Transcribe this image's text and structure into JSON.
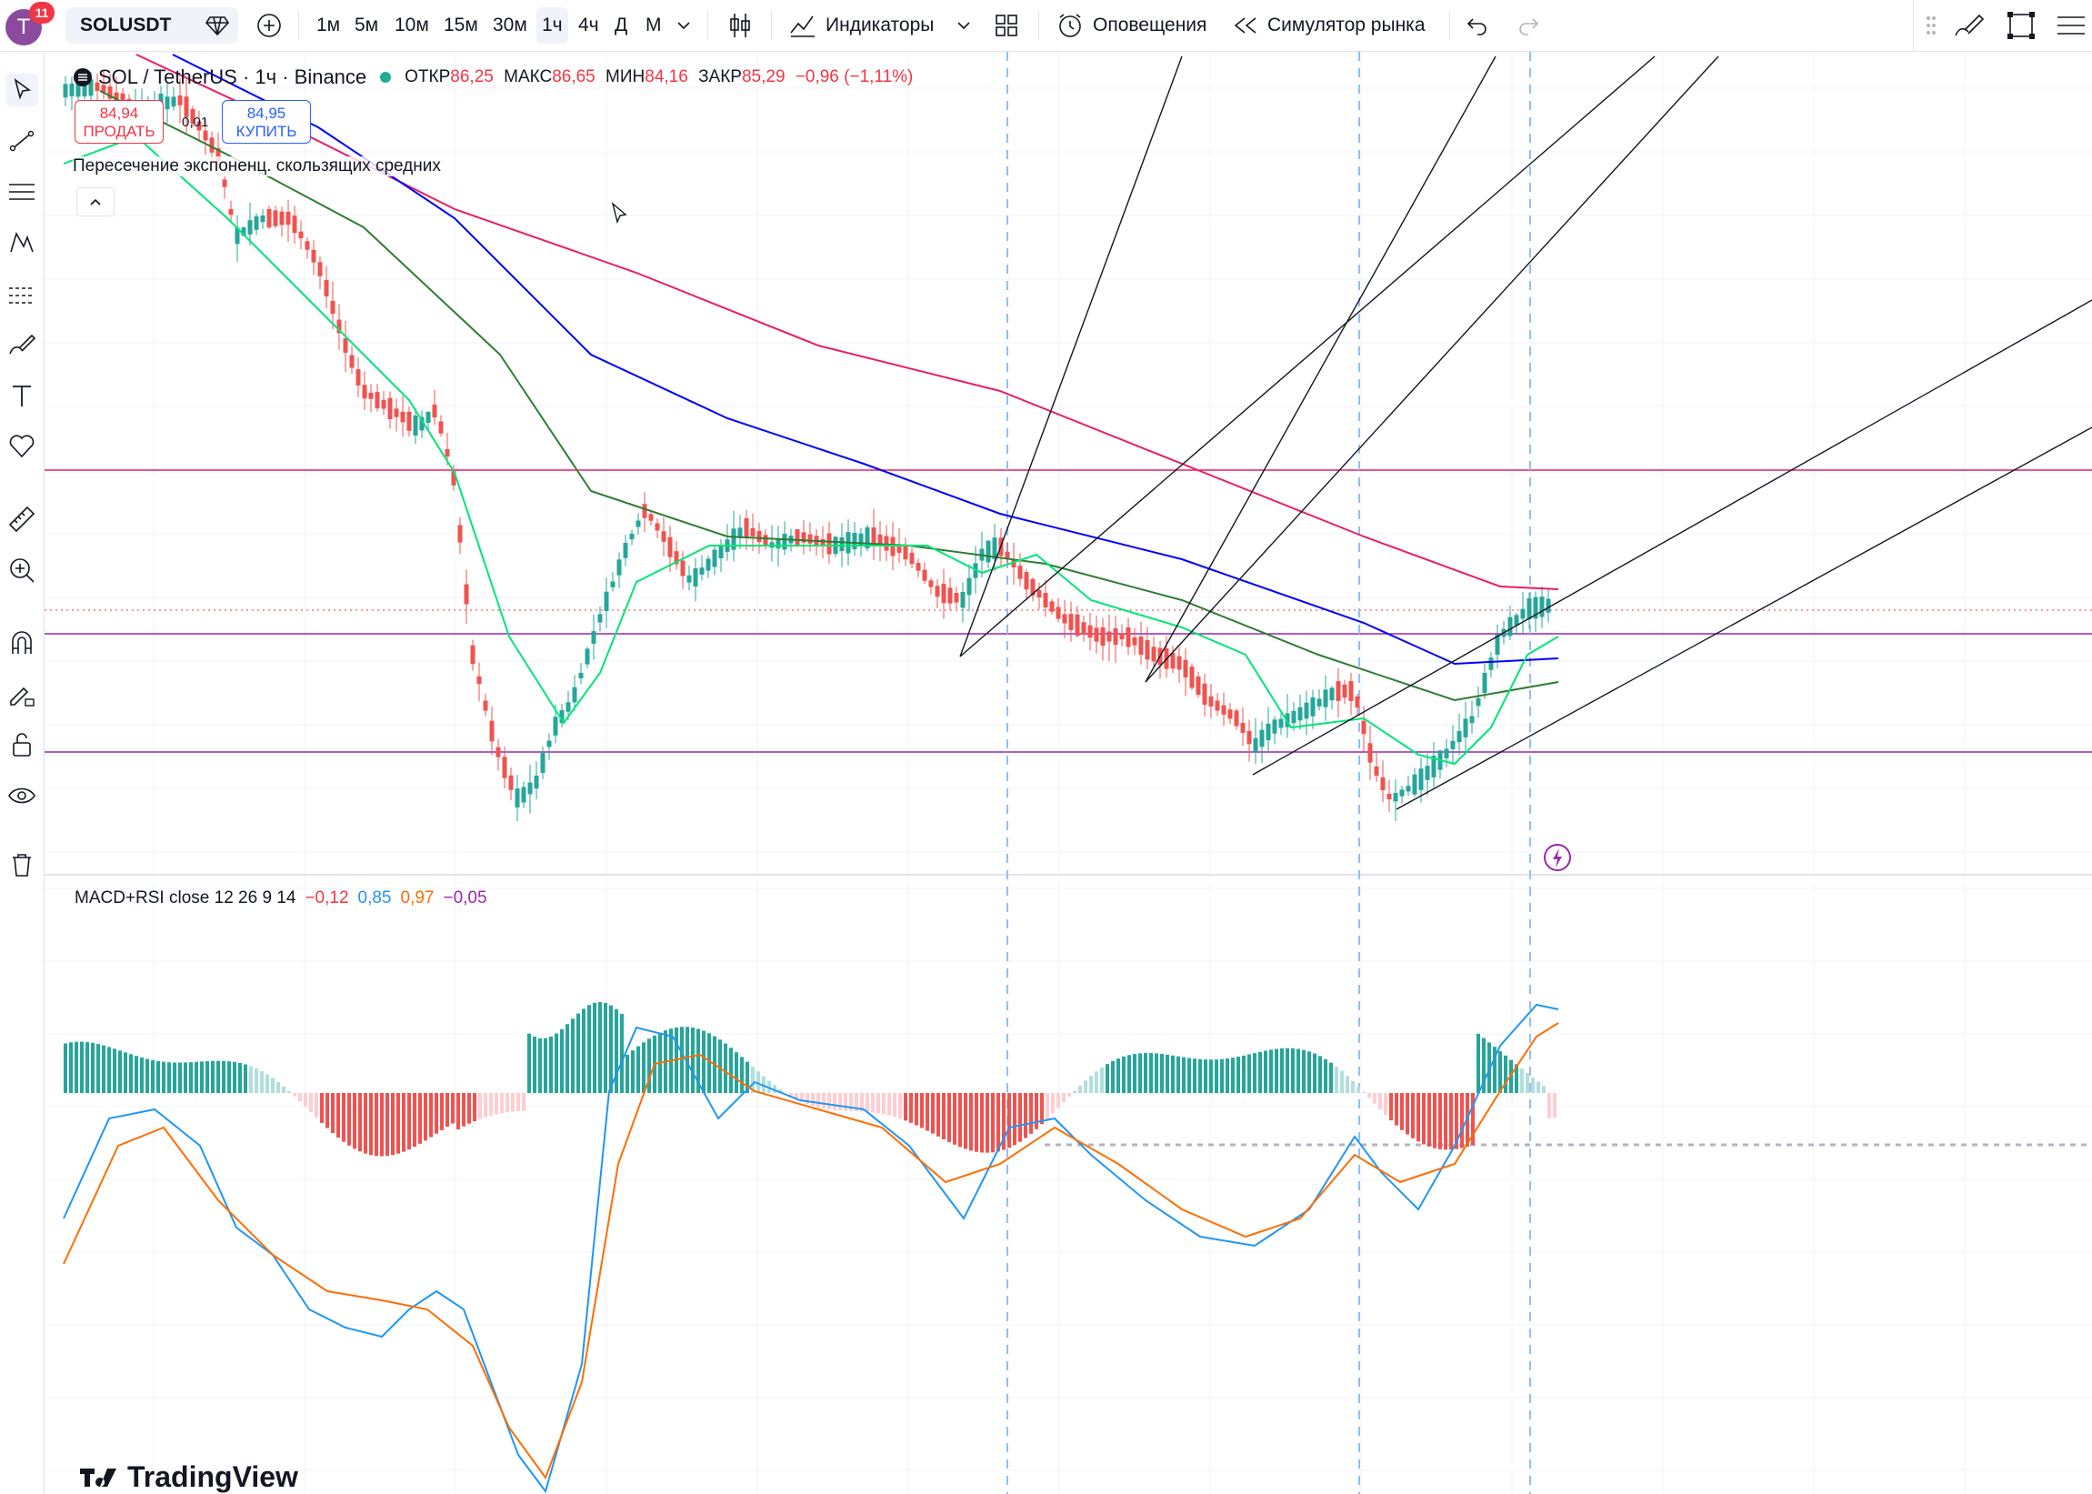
{
  "toolbar": {
    "avatar_letter": "T",
    "notification_count": "11",
    "symbol": "SOLUSDT",
    "intervals": [
      "1м",
      "5м",
      "10м",
      "15м",
      "30м",
      "1ч",
      "4ч",
      "Д",
      "М"
    ],
    "active_interval": "1ч",
    "indicators_label": "Индикаторы",
    "alerts_label": "Оповещения",
    "replay_label": "Симулятор рынка"
  },
  "legend": {
    "pair": "SOL / TetherUS · 1ч · Binance",
    "open_label": "ОТКР",
    "open": "86,25",
    "high_label": "МАКС",
    "high": "86,65",
    "low_label": "МИН",
    "low": "84,16",
    "close_label": "ЗАКР",
    "close": "85,29",
    "change": "−0,96 (−1,11%)"
  },
  "trade": {
    "sell_price": "84,94",
    "sell_label": "ПРОДАТЬ",
    "buy_price": "84,95",
    "buy_label": "КУПИТЬ",
    "spread": "0,01"
  },
  "indicator_legend": "Пересечение экспоненц. скользящих средних",
  "macd": {
    "title": "MACD+RSI close 12 26 9 14",
    "v1": "−0,12",
    "v2": "0,85",
    "v3": "0,97",
    "v4": "−0,05"
  },
  "watermark": "TradingView",
  "colors": {
    "up": "#26a69a",
    "down": "#ef5350",
    "ema_fast": "#00e676",
    "ema_mid": "#2e7d32",
    "ema_slow": "#0000ff",
    "ema_long": "#e91e63",
    "macd": "#2196f3",
    "signal": "#ff6d00"
  },
  "icons": [
    "cursor-icon",
    "trendline-icon",
    "fib-icon",
    "pattern-icon",
    "forecast-icon",
    "brush-icon",
    "text-icon",
    "heart-icon",
    "ruler-icon",
    "zoom-icon",
    "magnet-icon",
    "lock-draw-icon",
    "lock-icon",
    "eye-icon",
    "trash-icon"
  ]
}
